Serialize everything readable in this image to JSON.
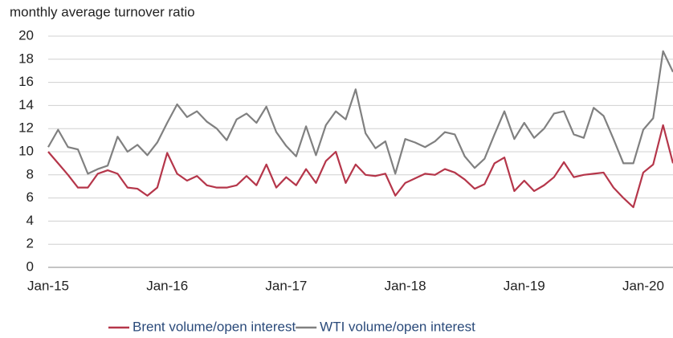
{
  "chart_data": {
    "type": "line",
    "title": "monthly average turnover ratio",
    "categories": [
      "Jan-15",
      null,
      null,
      null,
      null,
      null,
      null,
      null,
      null,
      null,
      null,
      null,
      "Jan-16",
      null,
      null,
      null,
      null,
      null,
      null,
      null,
      null,
      null,
      null,
      null,
      "Jan-17",
      null,
      null,
      null,
      null,
      null,
      null,
      null,
      null,
      null,
      null,
      null,
      "Jan-18",
      null,
      null,
      null,
      null,
      null,
      null,
      null,
      null,
      null,
      null,
      null,
      "Jan-19",
      null,
      null,
      null,
      null,
      null,
      null,
      null,
      null,
      null,
      null,
      null,
      "Jan-20",
      null,
      null,
      null
    ],
    "series": [
      {
        "name": "Brent volume/open interest",
        "color": "#b5364a",
        "values": [
          10.0,
          9.0,
          8.0,
          6.9,
          6.9,
          8.1,
          8.4,
          8.1,
          6.9,
          6.8,
          6.2,
          6.9,
          9.9,
          8.1,
          7.5,
          7.9,
          7.1,
          6.9,
          6.9,
          7.1,
          7.9,
          7.1,
          8.9,
          6.9,
          7.8,
          7.1,
          8.5,
          7.3,
          9.2,
          10.0,
          7.3,
          8.9,
          8.0,
          7.9,
          8.1,
          6.2,
          7.3,
          7.7,
          8.1,
          8.0,
          8.5,
          8.2,
          7.6,
          6.8,
          7.2,
          9.0,
          9.5,
          6.6,
          7.5,
          6.6,
          7.1,
          7.8,
          9.1,
          7.8,
          8.0,
          8.1,
          8.2,
          6.9,
          6.0,
          5.2,
          8.2,
          8.9,
          12.3,
          9.0
        ]
      },
      {
        "name": "WTI volume/open interest",
        "color": "#808080",
        "values": [
          10.4,
          11.9,
          10.4,
          10.2,
          8.1,
          8.5,
          8.8,
          11.3,
          10.0,
          10.6,
          9.7,
          10.8,
          12.5,
          14.1,
          13.0,
          13.5,
          12.6,
          12.0,
          11.0,
          12.8,
          13.3,
          12.5,
          13.9,
          11.7,
          10.5,
          9.6,
          12.2,
          9.7,
          12.3,
          13.5,
          12.8,
          15.4,
          11.6,
          10.3,
          10.9,
          8.1,
          11.1,
          10.8,
          10.4,
          10.9,
          11.7,
          11.5,
          9.6,
          8.6,
          9.4,
          11.5,
          13.5,
          11.1,
          12.5,
          11.2,
          12.0,
          13.3,
          13.5,
          11.5,
          11.2,
          13.8,
          13.1,
          11.1,
          9.0,
          9.0,
          11.9,
          12.9,
          18.7,
          16.9
        ]
      }
    ],
    "ylim": [
      0,
      20
    ],
    "yticks": [
      0,
      2,
      4,
      6,
      8,
      10,
      12,
      14,
      16,
      18,
      20
    ],
    "grid": true,
    "legend": "bottom"
  }
}
